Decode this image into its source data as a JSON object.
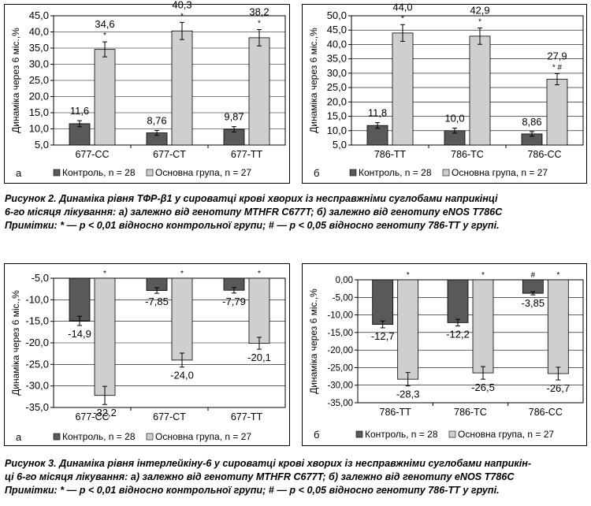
{
  "figure2": {
    "caption": {
      "line1": "Рисунок 2. Динаміка рівня ТФР-β1 у сироватці крові хворих із несправжніми суглобами наприкінці",
      "line2": "6-го місяця лікування: а) залежно від генотипу MTHFR C677T; б) залежно від генотипу eNOS T786C",
      "line3": "Примітки: * — р < 0,01 відносно контрольної групи; # — р < 0,05 відносно генотипу 786-TT у групі."
    },
    "panels": [
      {
        "letter": "а",
        "chart_data": {
          "type": "bar",
          "ylabel": "Динаміка через 6 міс.,%",
          "ylim": [
            5.0,
            45.0
          ],
          "yticks": [
            "5,0",
            "10,0",
            "15,0",
            "20,0",
            "25,0",
            "30,0",
            "35,0",
            "40,0",
            "45,0"
          ],
          "categories": [
            "677-CC",
            "677-CT",
            "677-TT"
          ],
          "series": [
            {
              "name": "Контроль, n = 28",
              "values": [
                11.6,
                8.76,
                9.87
              ],
              "labels": [
                "11,6",
                "8,76",
                "9,87"
              ],
              "marks": [
                "",
                "",
                ""
              ]
            },
            {
              "name": "Основна група, n = 27",
              "values": [
                34.6,
                40.3,
                38.2
              ],
              "labels": [
                "34,6",
                "40,3",
                "38,2"
              ],
              "marks": [
                "*",
                "*",
                "*"
              ]
            }
          ],
          "legend": "bottom"
        }
      },
      {
        "letter": "б",
        "chart_data": {
          "type": "bar",
          "ylabel": "Динаміка через 6 міс.,%",
          "ylim": [
            5.0,
            50.0
          ],
          "yticks": [
            "5,0",
            "10,0",
            "15,0",
            "20,0",
            "25,0",
            "30,0",
            "35,0",
            "40,0",
            "45,0",
            "50,0"
          ],
          "categories": [
            "786-TT",
            "786-TC",
            "786-CC"
          ],
          "series": [
            {
              "name": "Контроль, n = 28",
              "values": [
                11.8,
                10.0,
                8.86
              ],
              "labels": [
                "11,8",
                "10,0",
                "8,86"
              ],
              "marks": [
                "",
                "",
                ""
              ]
            },
            {
              "name": "Основна група, n = 27",
              "values": [
                44.0,
                42.9,
                27.9
              ],
              "labels": [
                "44,0",
                "42,9",
                "27,9"
              ],
              "marks": [
                "*",
                "*",
                "* #"
              ]
            }
          ],
          "legend": "bottom"
        }
      }
    ]
  },
  "figure3": {
    "caption": {
      "line1": "Рисунок 3. Динаміка рівня інтерлейкіну-6 у сироватці крові хворих із несправжніми суглобами наприкін-",
      "line2": "ці 6-го місяця лікування: а) залежно від генотипу MTHFR C677T; б) залежно від генотипу eNOS T786C",
      "line3": "Примітки: * — р < 0,01 відносно контрольної групи; # — р < 0,05 відносно генотипу 786-TT у групі."
    },
    "panels": [
      {
        "letter": "а",
        "chart_data": {
          "type": "bar",
          "ylabel": "Динаміка через 6 міс.,%",
          "ylim": [
            -35.0,
            -5.0
          ],
          "yticks": [
            "-5,0",
            "-10,0",
            "-15,0",
            "-20,0",
            "-25,0",
            "-30,0",
            "-35,0"
          ],
          "categories": [
            "677-CC",
            "677-CT",
            "677-TT"
          ],
          "series": [
            {
              "name": "Контроль, n = 28",
              "values": [
                -14.9,
                -7.85,
                -7.79
              ],
              "labels": [
                "-14,9",
                "-7,85",
                "-7,79"
              ],
              "marks": [
                "",
                "",
                ""
              ]
            },
            {
              "name": "Основна група, n = 27",
              "values": [
                -32.2,
                -24.0,
                -20.1
              ],
              "labels": [
                "-32,2",
                "-24,0",
                "-20,1"
              ],
              "marks": [
                "*",
                "*",
                "*"
              ]
            }
          ],
          "legend": "bottom"
        }
      },
      {
        "letter": "б",
        "chart_data": {
          "type": "bar",
          "ylabel": "Динаміка через 6 міс.,%",
          "ylim": [
            -35.0,
            0.0
          ],
          "yticks": [
            "0,00",
            "-5,00",
            "-10,00",
            "-15,00",
            "-20,00",
            "-25,00",
            "-30,00",
            "-35,00"
          ],
          "categories": [
            "786-TT",
            "786-TC",
            "786-CC"
          ],
          "series": [
            {
              "name": "Контроль, n = 28",
              "values": [
                -12.7,
                -12.2,
                -3.85
              ],
              "labels": [
                "-12,7",
                "-12,2",
                "-3,85"
              ],
              "marks": [
                "",
                "",
                "#"
              ]
            },
            {
              "name": "Основна група, n = 27",
              "values": [
                -28.3,
                -26.5,
                -26.7
              ],
              "labels": [
                "-28,3",
                "-26,5",
                "-26,7"
              ],
              "marks": [
                "*",
                "*",
                "*"
              ]
            }
          ],
          "legend": "bottom"
        }
      }
    ]
  },
  "colors": {
    "control": "#595959",
    "main": "#cfcfcf",
    "gridline": "#000000"
  }
}
